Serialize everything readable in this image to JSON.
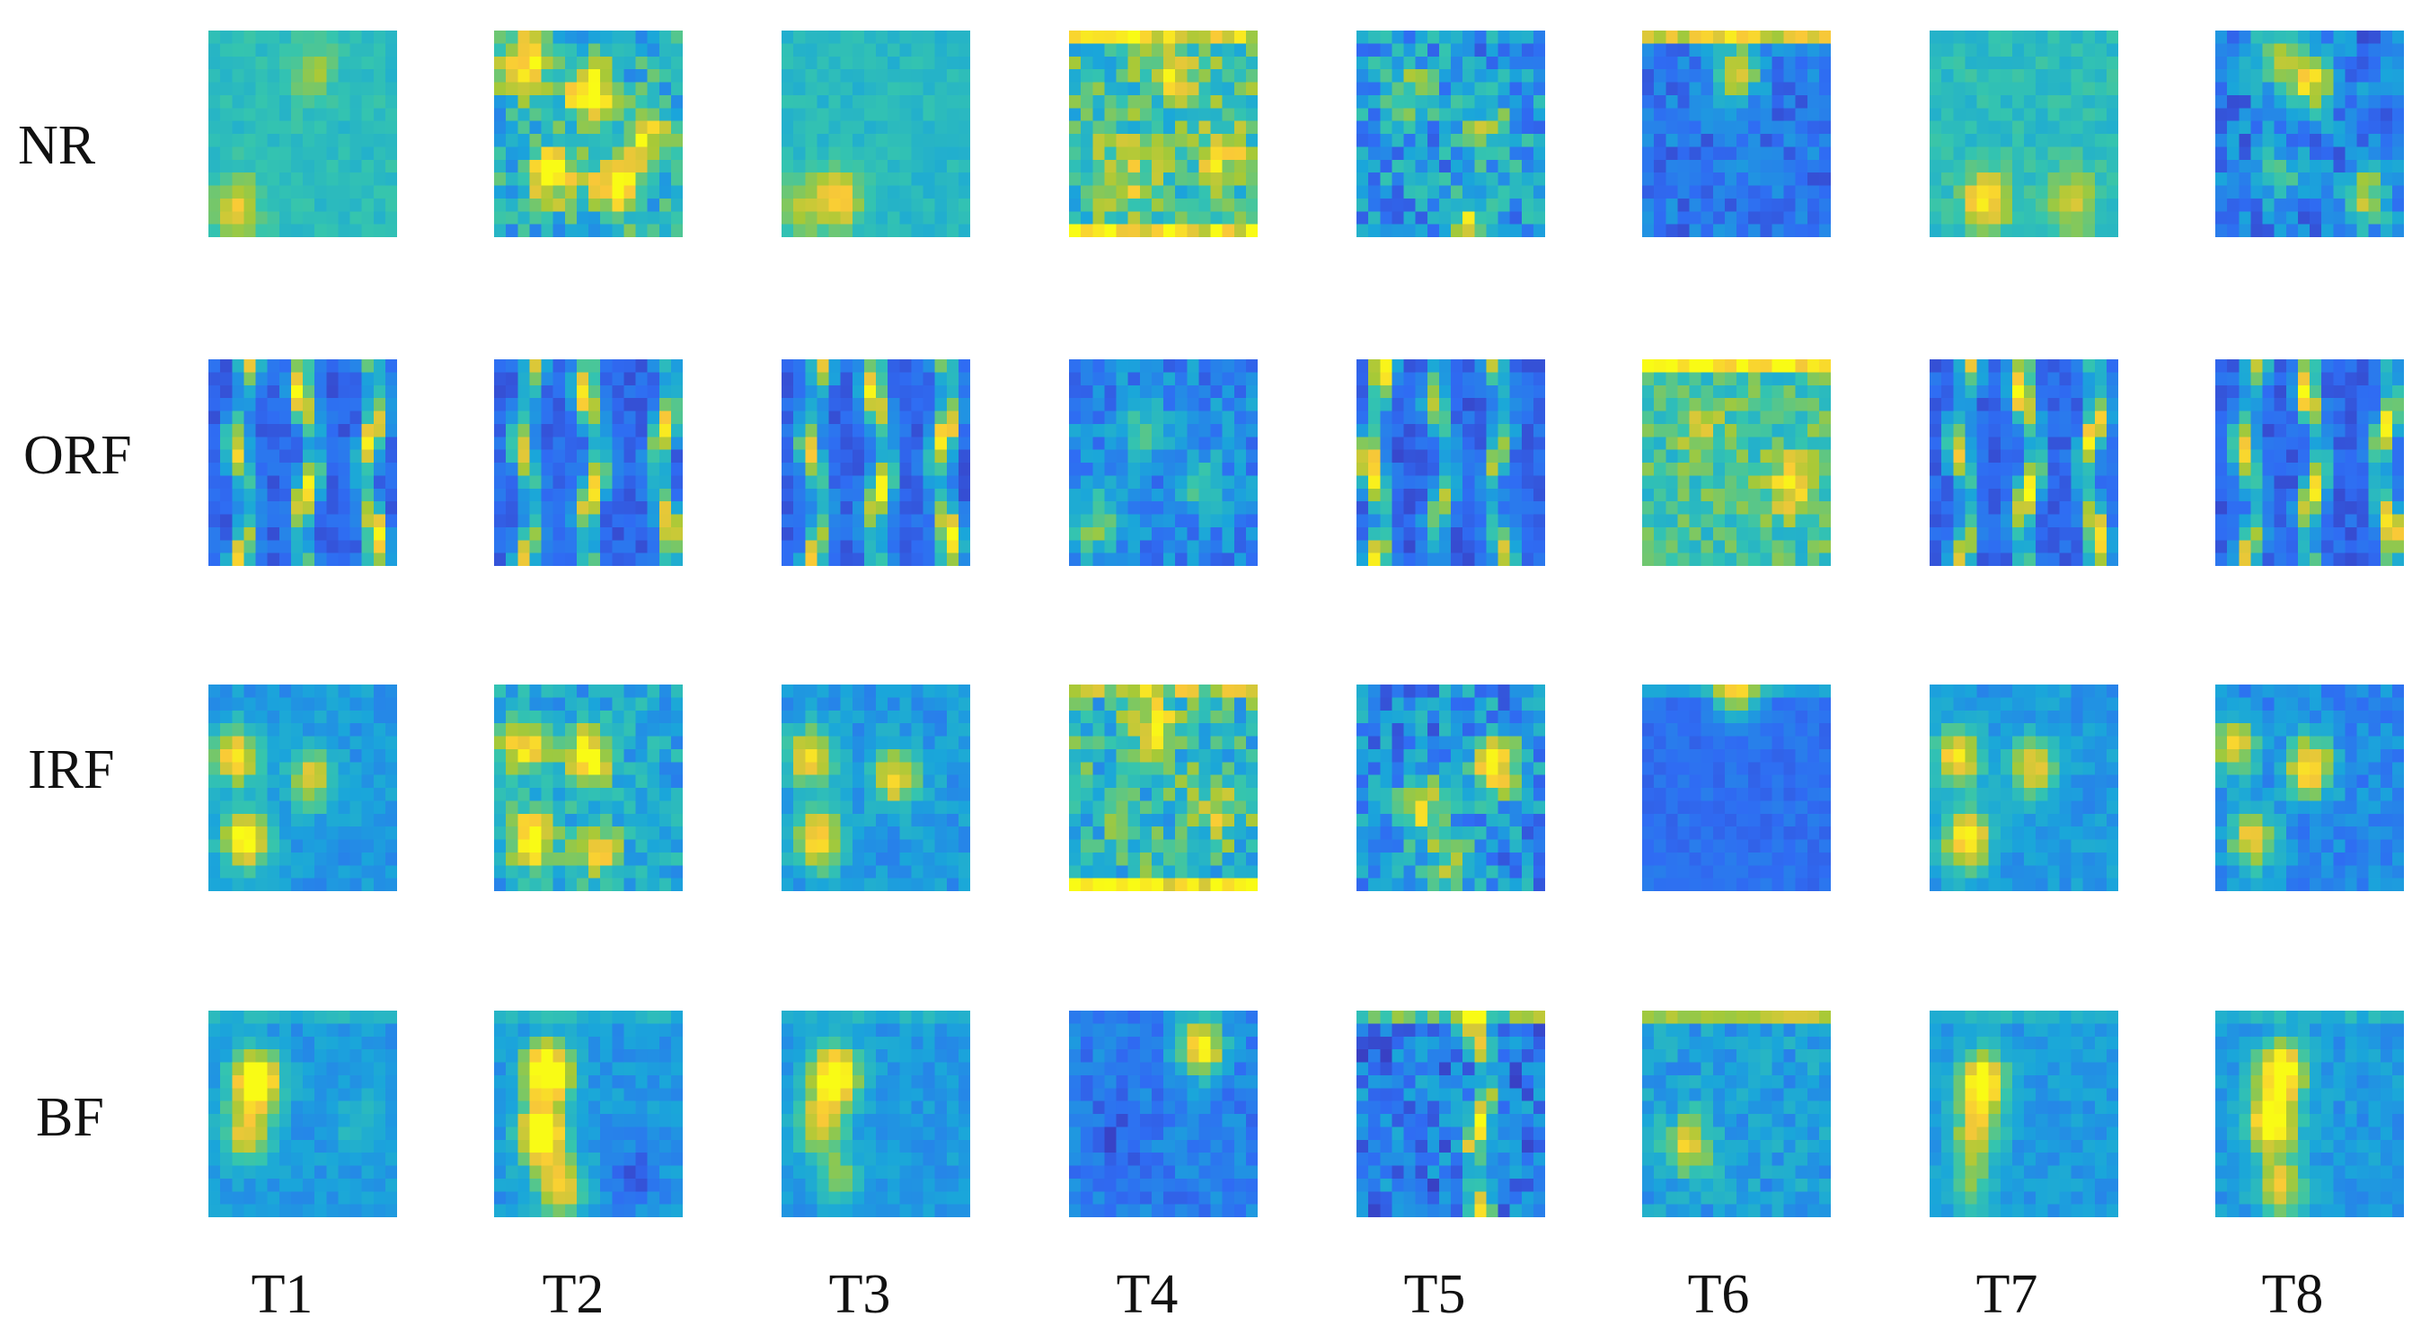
{
  "chart_data": {
    "type": "heatmap",
    "colormap": "parula",
    "colors": [
      "#3E26A8",
      "#2F6CF3",
      "#1AA6DA",
      "#35C5AE",
      "#A6C937",
      "#F9C838",
      "#F9FB15"
    ],
    "rows": [
      "NR",
      "ORF",
      "IRF",
      "BF"
    ],
    "columns": [
      "T1",
      "T2",
      "T3",
      "T4",
      "T5",
      "T6",
      "T7",
      "T8"
    ],
    "grid_resolution": 16,
    "grid": false,
    "axes_visible": false,
    "panels": [
      [
        {
          "base": 0.45,
          "noise": 0.06,
          "blobs": [
            [
              0.15,
              0.85,
              0.35
            ],
            [
              0.55,
              0.2,
              0.2
            ]
          ],
          "stripes": [],
          "edge_top": 0,
          "edge_bottom": 0
        },
        {
          "base": 0.4,
          "noise": 0.18,
          "blobs": [
            [
              0.15,
              0.15,
              0.6
            ],
            [
              0.5,
              0.3,
              0.7
            ],
            [
              0.3,
              0.7,
              0.6
            ],
            [
              0.65,
              0.75,
              0.7
            ],
            [
              0.8,
              0.5,
              0.5
            ]
          ],
          "stripes": [],
          "edge_top": 0,
          "edge_bottom": 0
        },
        {
          "base": 0.43,
          "noise": 0.06,
          "blobs": [
            [
              0.3,
              0.82,
              0.45
            ],
            [
              0.1,
              0.85,
              0.25
            ]
          ],
          "stripes": [],
          "edge_top": 0,
          "edge_bottom": 0
        },
        {
          "base": 0.5,
          "noise": 0.2,
          "blobs": [
            [
              0.55,
              0.2,
              0.3
            ],
            [
              0.8,
              0.6,
              0.35
            ],
            [
              0.3,
              0.7,
              0.3
            ]
          ],
          "stripes": [],
          "edge_top": 0.35,
          "edge_bottom": 0.4
        },
        {
          "base": 0.32,
          "noise": 0.2,
          "blobs": [
            [
              0.6,
              0.95,
              0.5
            ],
            [
              0.7,
              0.5,
              0.3
            ],
            [
              0.3,
              0.3,
              0.25
            ]
          ],
          "stripes": [],
          "edge_top": 0,
          "edge_bottom": 0
        },
        {
          "base": 0.2,
          "noise": 0.1,
          "blobs": [
            [
              0.5,
              0.2,
              0.6
            ]
          ],
          "stripes": [],
          "edge_top": 0.55,
          "edge_bottom": 0
        },
        {
          "base": 0.45,
          "noise": 0.07,
          "blobs": [
            [
              0.3,
              0.82,
              0.5
            ],
            [
              0.75,
              0.82,
              0.35
            ]
          ],
          "stripes": [],
          "edge_top": 0,
          "edge_bottom": 0
        },
        {
          "base": 0.22,
          "noise": 0.14,
          "blobs": [
            [
              0.5,
              0.25,
              0.65
            ],
            [
              0.3,
              0.15,
              0.4
            ],
            [
              0.8,
              0.8,
              0.5
            ],
            [
              0.35,
              0.7,
              0.3
            ]
          ],
          "stripes": [],
          "edge_top": 0,
          "edge_bottom": 0
        }
      ],
      [
        {
          "base": 0.15,
          "noise": 0.06,
          "blobs": [],
          "stripes": [
            [
              0.18,
              0.7
            ],
            [
              0.52,
              0.85
            ],
            [
              0.86,
              0.85
            ]
          ],
          "edge_top": 0,
          "edge_bottom": 0
        },
        {
          "base": 0.15,
          "noise": 0.06,
          "blobs": [],
          "stripes": [
            [
              0.18,
              0.7
            ],
            [
              0.52,
              0.85
            ],
            [
              0.9,
              0.8
            ]
          ],
          "edge_top": 0,
          "edge_bottom": 0
        },
        {
          "base": 0.15,
          "noise": 0.06,
          "blobs": [],
          "stripes": [
            [
              0.18,
              0.7
            ],
            [
              0.52,
              0.85
            ],
            [
              0.86,
              0.85
            ]
          ],
          "edge_top": 0,
          "edge_bottom": 0
        },
        {
          "base": 0.25,
          "noise": 0.12,
          "blobs": [
            [
              0.15,
              0.8,
              0.4
            ],
            [
              0.4,
              0.35,
              0.3
            ],
            [
              0.7,
              0.6,
              0.25
            ]
          ],
          "stripes": [],
          "edge_top": 0,
          "edge_bottom": 0
        },
        {
          "base": 0.15,
          "noise": 0.07,
          "blobs": [],
          "stripes": [
            [
              0.1,
              0.9
            ],
            [
              0.45,
              0.6
            ],
            [
              0.75,
              0.6
            ]
          ],
          "edge_top": 0,
          "edge_bottom": 0
        },
        {
          "base": 0.5,
          "noise": 0.14,
          "blobs": [
            [
              0.8,
              0.6,
              0.45
            ],
            [
              0.3,
              0.3,
              0.2
            ]
          ],
          "stripes": [],
          "edge_top": 0.45,
          "edge_bottom": 0
        },
        {
          "base": 0.15,
          "noise": 0.06,
          "blobs": [],
          "stripes": [
            [
              0.18,
              0.7
            ],
            [
              0.52,
              0.9
            ],
            [
              0.86,
              0.85
            ]
          ],
          "edge_top": 0,
          "edge_bottom": 0
        },
        {
          "base": 0.15,
          "noise": 0.06,
          "blobs": [],
          "stripes": [
            [
              0.18,
              0.7
            ],
            [
              0.52,
              0.85
            ],
            [
              0.9,
              0.85
            ]
          ],
          "edge_top": 0,
          "edge_bottom": 0
        }
      ],
      [
        {
          "base": 0.3,
          "noise": 0.07,
          "blobs": [
            [
              0.15,
              0.35,
              0.6
            ],
            [
              0.2,
              0.75,
              0.8
            ],
            [
              0.55,
              0.45,
              0.5
            ]
          ],
          "stripes": [],
          "edge_top": 0,
          "edge_bottom": 0
        },
        {
          "base": 0.35,
          "noise": 0.14,
          "blobs": [
            [
              0.15,
              0.3,
              0.6
            ],
            [
              0.5,
              0.35,
              0.75
            ],
            [
              0.2,
              0.75,
              0.7
            ],
            [
              0.55,
              0.8,
              0.5
            ]
          ],
          "stripes": [],
          "edge_top": 0,
          "edge_bottom": 0
        },
        {
          "base": 0.3,
          "noise": 0.08,
          "blobs": [
            [
              0.15,
              0.35,
              0.6
            ],
            [
              0.2,
              0.75,
              0.65
            ],
            [
              0.6,
              0.45,
              0.55
            ]
          ],
          "stripes": [],
          "edge_top": 0,
          "edge_bottom": 0
        },
        {
          "base": 0.45,
          "noise": 0.2,
          "blobs": [
            [
              0.45,
              0.2,
              0.45
            ],
            [
              0.8,
              0.6,
              0.3
            ]
          ],
          "stripes": [],
          "edge_top": 0.2,
          "edge_bottom": 0.45
        },
        {
          "base": 0.28,
          "noise": 0.18,
          "blobs": [
            [
              0.75,
              0.4,
              0.7
            ],
            [
              0.35,
              0.6,
              0.55
            ],
            [
              0.5,
              0.85,
              0.4
            ]
          ],
          "stripes": [],
          "edge_top": 0,
          "edge_bottom": 0
        },
        {
          "base": 0.18,
          "noise": 0.04,
          "blobs": [
            [
              0.5,
              0.02,
              0.6
            ]
          ],
          "stripes": [],
          "edge_top": 0.15,
          "edge_bottom": 0
        },
        {
          "base": 0.3,
          "noise": 0.07,
          "blobs": [
            [
              0.15,
              0.35,
              0.6
            ],
            [
              0.2,
              0.75,
              0.7
            ],
            [
              0.55,
              0.4,
              0.5
            ]
          ],
          "stripes": [],
          "edge_top": 0,
          "edge_bottom": 0
        },
        {
          "base": 0.25,
          "noise": 0.08,
          "blobs": [
            [
              0.1,
              0.3,
              0.6
            ],
            [
              0.5,
              0.4,
              0.75
            ],
            [
              0.2,
              0.75,
              0.6
            ]
          ],
          "stripes": [],
          "edge_top": 0,
          "edge_bottom": 0
        }
      ],
      [
        {
          "base": 0.3,
          "noise": 0.06,
          "blobs": [
            [
              0.25,
              0.35,
              0.95
            ],
            [
              0.2,
              0.6,
              0.5
            ],
            [
              0.8,
              0.55,
              0.15
            ]
          ],
          "stripes": [],
          "edge_top": 0.1,
          "edge_bottom": 0
        },
        {
          "base": 0.3,
          "noise": 0.07,
          "blobs": [
            [
              0.28,
              0.3,
              0.95
            ],
            [
              0.25,
              0.6,
              0.9
            ],
            [
              0.35,
              0.85,
              0.6
            ],
            [
              0.75,
              0.8,
              -0.2
            ]
          ],
          "stripes": [],
          "edge_top": 0.1,
          "edge_bottom": 0
        },
        {
          "base": 0.3,
          "noise": 0.06,
          "blobs": [
            [
              0.28,
              0.32,
              0.9
            ],
            [
              0.2,
              0.55,
              0.5
            ],
            [
              0.3,
              0.8,
              0.3
            ]
          ],
          "stripes": [],
          "edge_top": 0.1,
          "edge_bottom": 0
        },
        {
          "base": 0.22,
          "noise": 0.08,
          "blobs": [
            [
              0.7,
              0.18,
              0.75
            ],
            [
              0.25,
              0.6,
              -0.1
            ]
          ],
          "stripes": [],
          "edge_top": 0,
          "edge_bottom": 0
        },
        {
          "base": 0.22,
          "noise": 0.16,
          "blobs": [],
          "stripes": [
            [
              0.65,
              0.8
            ]
          ],
          "edge_top": 0.35,
          "edge_bottom": 0
        },
        {
          "base": 0.32,
          "noise": 0.1,
          "blobs": [
            [
              0.25,
              0.65,
              0.5
            ]
          ],
          "stripes": [],
          "edge_top": 0.35,
          "edge_bottom": 0
        },
        {
          "base": 0.3,
          "noise": 0.06,
          "blobs": [
            [
              0.28,
              0.35,
              0.85
            ],
            [
              0.25,
              0.6,
              0.5
            ],
            [
              0.22,
              0.85,
              0.3
            ]
          ],
          "stripes": [],
          "edge_top": 0.1,
          "edge_bottom": 0
        },
        {
          "base": 0.3,
          "noise": 0.07,
          "blobs": [
            [
              0.35,
              0.3,
              0.85
            ],
            [
              0.3,
              0.55,
              0.8
            ],
            [
              0.35,
              0.85,
              0.5
            ]
          ],
          "stripes": [],
          "edge_top": 0.1,
          "edge_bottom": 0
        }
      ]
    ]
  }
}
